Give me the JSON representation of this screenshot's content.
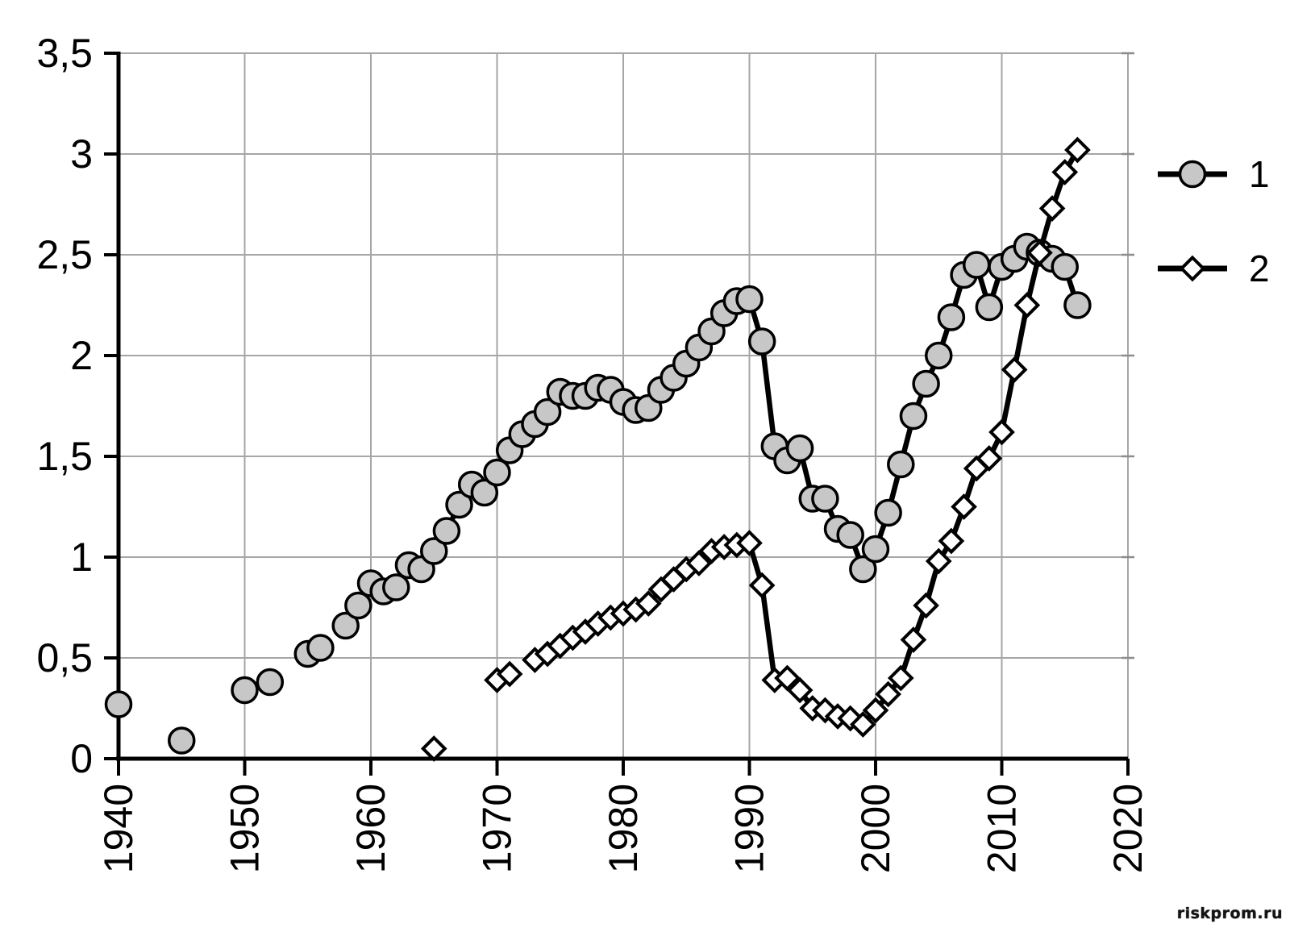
{
  "watermark": "riskprom.ru",
  "chart_data": {
    "type": "line",
    "title": "",
    "xlabel": "",
    "ylabel": "",
    "xlim": [
      1940,
      2020
    ],
    "ylim": [
      0,
      3.5
    ],
    "grid": true,
    "legend_position": "right",
    "decimal_separator": ",",
    "x_ticks": [
      {
        "value": 1940,
        "label": "1940"
      },
      {
        "value": 1950,
        "label": "1950"
      },
      {
        "value": 1960,
        "label": "1960"
      },
      {
        "value": 1970,
        "label": "1970"
      },
      {
        "value": 1980,
        "label": "1980"
      },
      {
        "value": 1990,
        "label": "1990"
      },
      {
        "value": 2000,
        "label": "2000"
      },
      {
        "value": 2010,
        "label": "2010"
      },
      {
        "value": 2020,
        "label": "2020"
      }
    ],
    "y_ticks": [
      {
        "value": 0,
        "label": "0"
      },
      {
        "value": 0.5,
        "label": "0,5"
      },
      {
        "value": 1,
        "label": "1"
      },
      {
        "value": 1.5,
        "label": "1,5"
      },
      {
        "value": 2,
        "label": "2"
      },
      {
        "value": 2.5,
        "label": "2,5"
      },
      {
        "value": 3,
        "label": "3"
      },
      {
        "value": 3.5,
        "label": "3,5"
      }
    ],
    "colors": {
      "gridline": "#a6a6a6",
      "axis": "#000000",
      "series_line": "#000000",
      "circle_marker_fill": "#c7c7c7",
      "diamond_marker_fill": "#ffffff",
      "marker_stroke": "#000000",
      "background": "#ffffff"
    },
    "series": [
      {
        "name": "1",
        "marker": "circle",
        "segments": [
          [
            [
              1940,
              0.27
            ]
          ],
          [
            [
              1945,
              0.09
            ]
          ],
          [
            [
              1950,
              0.34
            ]
          ],
          [
            [
              1952,
              0.38
            ]
          ],
          [
            [
              1955,
              0.52
            ],
            [
              1956,
              0.55
            ]
          ],
          [
            [
              1958,
              0.66
            ],
            [
              1959,
              0.76
            ],
            [
              1960,
              0.87
            ],
            [
              1961,
              0.83
            ],
            [
              1962,
              0.85
            ],
            [
              1963,
              0.96
            ],
            [
              1964,
              0.94
            ],
            [
              1965,
              1.03
            ],
            [
              1966,
              1.13
            ],
            [
              1967,
              1.26
            ],
            [
              1968,
              1.36
            ],
            [
              1969,
              1.32
            ],
            [
              1970,
              1.42
            ],
            [
              1971,
              1.53
            ],
            [
              1972,
              1.61
            ],
            [
              1973,
              1.66
            ],
            [
              1974,
              1.72
            ],
            [
              1975,
              1.82
            ],
            [
              1976,
              1.8
            ],
            [
              1977,
              1.8
            ],
            [
              1978,
              1.84
            ],
            [
              1979,
              1.83
            ],
            [
              1980,
              1.77
            ],
            [
              1981,
              1.73
            ],
            [
              1982,
              1.74
            ],
            [
              1983,
              1.83
            ],
            [
              1984,
              1.89
            ],
            [
              1985,
              1.96
            ],
            [
              1986,
              2.04
            ],
            [
              1987,
              2.12
            ],
            [
              1988,
              2.21
            ],
            [
              1989,
              2.27
            ],
            [
              1990,
              2.28
            ],
            [
              1991,
              2.07
            ],
            [
              1992,
              1.55
            ],
            [
              1993,
              1.48
            ],
            [
              1994,
              1.54
            ],
            [
              1995,
              1.29
            ],
            [
              1996,
              1.29
            ],
            [
              1997,
              1.14
            ],
            [
              1998,
              1.11
            ],
            [
              1999,
              0.94
            ],
            [
              2000,
              1.04
            ],
            [
              2001,
              1.22
            ],
            [
              2002,
              1.46
            ],
            [
              2003,
              1.7
            ],
            [
              2004,
              1.86
            ],
            [
              2005,
              2.0
            ],
            [
              2006,
              2.19
            ],
            [
              2007,
              2.4
            ],
            [
              2008,
              2.45
            ],
            [
              2009,
              2.24
            ],
            [
              2010,
              2.44
            ],
            [
              2011,
              2.48
            ],
            [
              2012,
              2.54
            ],
            [
              2013,
              2.51
            ],
            [
              2014,
              2.48
            ],
            [
              2015,
              2.44
            ],
            [
              2016,
              2.25
            ]
          ]
        ]
      },
      {
        "name": "2",
        "marker": "diamond",
        "segments": [
          [
            [
              1965,
              0.05
            ]
          ],
          [
            [
              1970,
              0.39
            ],
            [
              1971,
              0.42
            ]
          ],
          [
            [
              1973,
              0.49
            ],
            [
              1974,
              0.52
            ],
            [
              1975,
              0.56
            ],
            [
              1976,
              0.6
            ],
            [
              1977,
              0.63
            ],
            [
              1978,
              0.67
            ],
            [
              1979,
              0.7
            ],
            [
              1980,
              0.72
            ],
            [
              1981,
              0.74
            ],
            [
              1982,
              0.77
            ],
            [
              1983,
              0.84
            ],
            [
              1984,
              0.89
            ],
            [
              1985,
              0.94
            ],
            [
              1986,
              0.97
            ],
            [
              1987,
              1.03
            ],
            [
              1988,
              1.05
            ],
            [
              1989,
              1.06
            ],
            [
              1990,
              1.07
            ],
            [
              1991,
              0.86
            ],
            [
              1992,
              0.39
            ],
            [
              1993,
              0.4
            ],
            [
              1994,
              0.34
            ],
            [
              1995,
              0.25
            ],
            [
              1996,
              0.24
            ],
            [
              1997,
              0.21
            ],
            [
              1998,
              0.2
            ],
            [
              1999,
              0.17
            ],
            [
              2000,
              0.24
            ],
            [
              2001,
              0.32
            ],
            [
              2002,
              0.4
            ],
            [
              2003,
              0.59
            ],
            [
              2004,
              0.76
            ],
            [
              2005,
              0.98
            ],
            [
              2006,
              1.08
            ],
            [
              2007,
              1.25
            ],
            [
              2008,
              1.44
            ],
            [
              2009,
              1.49
            ],
            [
              2010,
              1.62
            ],
            [
              2011,
              1.93
            ],
            [
              2012,
              2.25
            ],
            [
              2013,
              2.51
            ],
            [
              2014,
              2.73
            ],
            [
              2015,
              2.91
            ],
            [
              2016,
              3.02
            ]
          ]
        ]
      }
    ]
  }
}
